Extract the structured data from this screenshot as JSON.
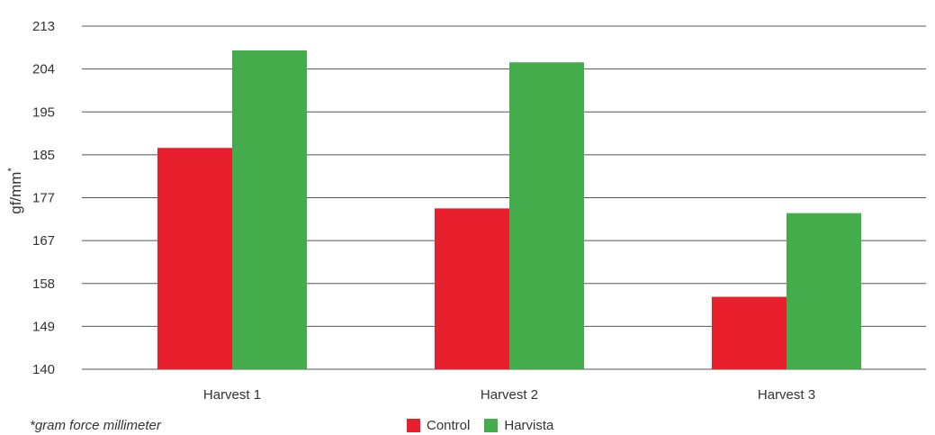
{
  "chart_data": {
    "type": "bar",
    "categories": [
      "Harvest 1",
      "Harvest 2",
      "Harvest 3"
    ],
    "series": [
      {
        "name": "Control",
        "values": [
          186.6,
          174.5,
          155.2
        ],
        "color": "#e8202e"
      },
      {
        "name": "Harvista",
        "values": [
          207.9,
          205.4,
          173.4
        ],
        "color": "#45ac4b"
      }
    ],
    "y_ticks": [
      "140",
      "149",
      "158",
      "167",
      "177",
      "185",
      "195",
      "204",
      "213"
    ],
    "ylabel": "gf/mm",
    "ylabel_superscript": "*",
    "footnote": "*gram force millimeter",
    "ylim": [
      140,
      213
    ],
    "grid": true,
    "legend_position": "bottom-center"
  }
}
